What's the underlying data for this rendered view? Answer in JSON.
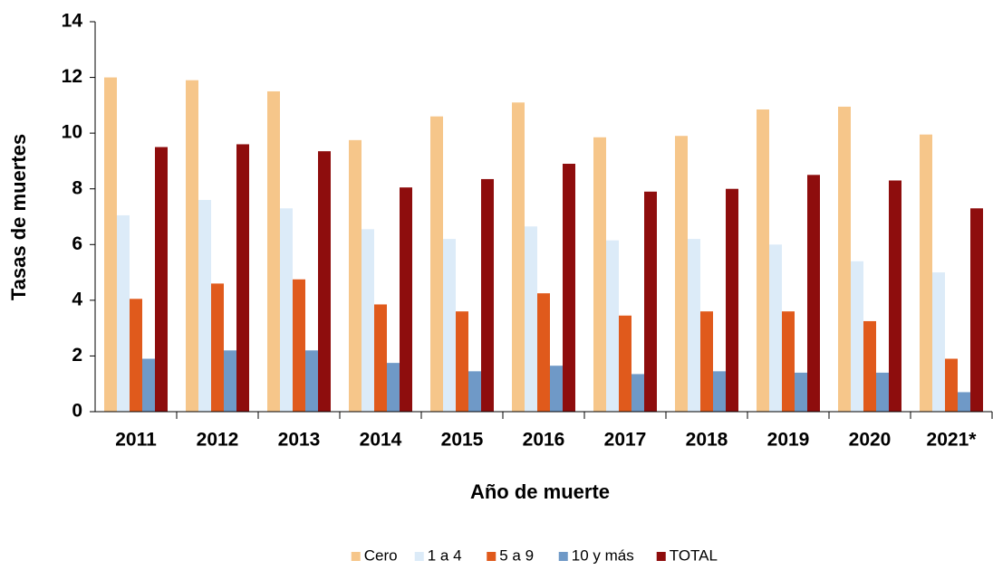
{
  "chart_data": {
    "type": "bar",
    "x_label": "Año de muerte",
    "y_label": "Tasas de muertes",
    "categories": [
      "2011",
      "2012",
      "2013",
      "2014",
      "2015",
      "2016",
      "2017",
      "2018",
      "2019",
      "2020",
      "2021*"
    ],
    "series": [
      {
        "name": "Cero",
        "color": "#f6c68a",
        "values": [
          12.0,
          11.9,
          11.5,
          9.75,
          10.6,
          11.1,
          9.85,
          9.9,
          10.85,
          10.95,
          9.95
        ]
      },
      {
        "name": "1 a 4",
        "color": "#dcebf8",
        "values": [
          7.05,
          7.6,
          7.3,
          6.55,
          6.2,
          6.65,
          6.15,
          6.2,
          6.0,
          5.4,
          5.0
        ]
      },
      {
        "name": "5 a 9",
        "color": "#e05a1c",
        "values": [
          4.05,
          4.6,
          4.75,
          3.85,
          3.6,
          4.25,
          3.45,
          3.6,
          3.6,
          3.25,
          1.9
        ]
      },
      {
        "name": "10 y más",
        "color": "#6f99c7",
        "values": [
          1.9,
          2.2,
          2.2,
          1.75,
          1.45,
          1.65,
          1.35,
          1.45,
          1.4,
          1.4,
          0.7
        ]
      },
      {
        "name": "TOTAL",
        "color": "#8e0d0d",
        "values": [
          9.5,
          9.6,
          9.35,
          8.05,
          8.35,
          8.9,
          7.9,
          8.0,
          8.5,
          8.3,
          7.3
        ]
      }
    ],
    "ylim": [
      0,
      14
    ],
    "yticks": [
      0,
      2,
      4,
      6,
      8,
      10,
      12,
      14
    ],
    "grid": false,
    "legend": "bottom"
  }
}
